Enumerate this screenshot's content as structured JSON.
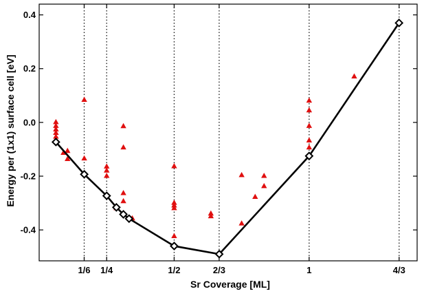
{
  "chart_data": {
    "type": "scatter",
    "title": "",
    "xlabel": "Sr Coverage [ML]",
    "ylabel": "Energy per (1x1) surface cell [eV]",
    "xlim": [
      0,
      1.4
    ],
    "ylim": [
      -0.515,
      0.44
    ],
    "x_ticks": [
      {
        "value": 0.1667,
        "label": "1/6"
      },
      {
        "value": 0.25,
        "label": "1/4"
      },
      {
        "value": 0.5,
        "label": "1/2"
      },
      {
        "value": 0.6667,
        "label": "2/3"
      },
      {
        "value": 1.0,
        "label": "1"
      },
      {
        "value": 1.3333,
        "label": "4/3"
      }
    ],
    "y_ticks": [
      {
        "value": -0.4,
        "label": "-0.4"
      },
      {
        "value": -0.2,
        "label": "-0.2"
      },
      {
        "value": 0.0,
        "label": "0.0"
      },
      {
        "value": 0.2,
        "label": "0.2"
      },
      {
        "value": 0.4,
        "label": "0.4"
      }
    ],
    "vertical_dotted_lines": [
      0.1667,
      0.25,
      0.5,
      0.6667,
      1.0,
      1.3333
    ],
    "grid": false,
    "series": [
      {
        "kind": "scatter",
        "marker": "triangle",
        "color": "#e01010",
        "points": [
          [
            0.062,
            0.002
          ],
          [
            0.062,
            -0.012
          ],
          [
            0.062,
            -0.025
          ],
          [
            0.062,
            -0.038
          ],
          [
            0.062,
            -0.052
          ],
          [
            0.09,
            -0.112
          ],
          [
            0.105,
            -0.105
          ],
          [
            0.105,
            -0.135
          ],
          [
            0.167,
            0.085
          ],
          [
            0.167,
            -0.133
          ],
          [
            0.25,
            -0.163
          ],
          [
            0.25,
            -0.178
          ],
          [
            0.25,
            -0.198
          ],
          [
            0.286,
            -0.318
          ],
          [
            0.312,
            -0.262
          ],
          [
            0.312,
            -0.292
          ],
          [
            0.312,
            -0.013
          ],
          [
            0.312,
            -0.092
          ],
          [
            0.345,
            -0.356
          ],
          [
            0.5,
            -0.162
          ],
          [
            0.5,
            -0.298
          ],
          [
            0.5,
            -0.308
          ],
          [
            0.5,
            -0.318
          ],
          [
            0.5,
            -0.422
          ],
          [
            0.636,
            -0.338
          ],
          [
            0.636,
            -0.348
          ],
          [
            0.75,
            -0.195
          ],
          [
            0.75,
            -0.375
          ],
          [
            0.8,
            -0.276
          ],
          [
            0.833,
            -0.198
          ],
          [
            0.833,
            -0.236
          ],
          [
            1.0,
            0.082
          ],
          [
            1.0,
            0.046
          ],
          [
            1.0,
            -0.012
          ],
          [
            1.0,
            -0.066
          ],
          [
            1.0,
            -0.092
          ],
          [
            1.167,
            0.172
          ]
        ]
      },
      {
        "kind": "line",
        "marker": "diamond",
        "color": "#000000",
        "points": [
          [
            0.062,
            -0.073
          ],
          [
            0.167,
            -0.193
          ],
          [
            0.25,
            -0.273
          ],
          [
            0.286,
            -0.316
          ],
          [
            0.312,
            -0.342
          ],
          [
            0.333,
            -0.358
          ],
          [
            0.5,
            -0.46
          ],
          [
            0.667,
            -0.49
          ],
          [
            1.0,
            -0.125
          ],
          [
            1.333,
            0.37
          ]
        ]
      }
    ]
  }
}
